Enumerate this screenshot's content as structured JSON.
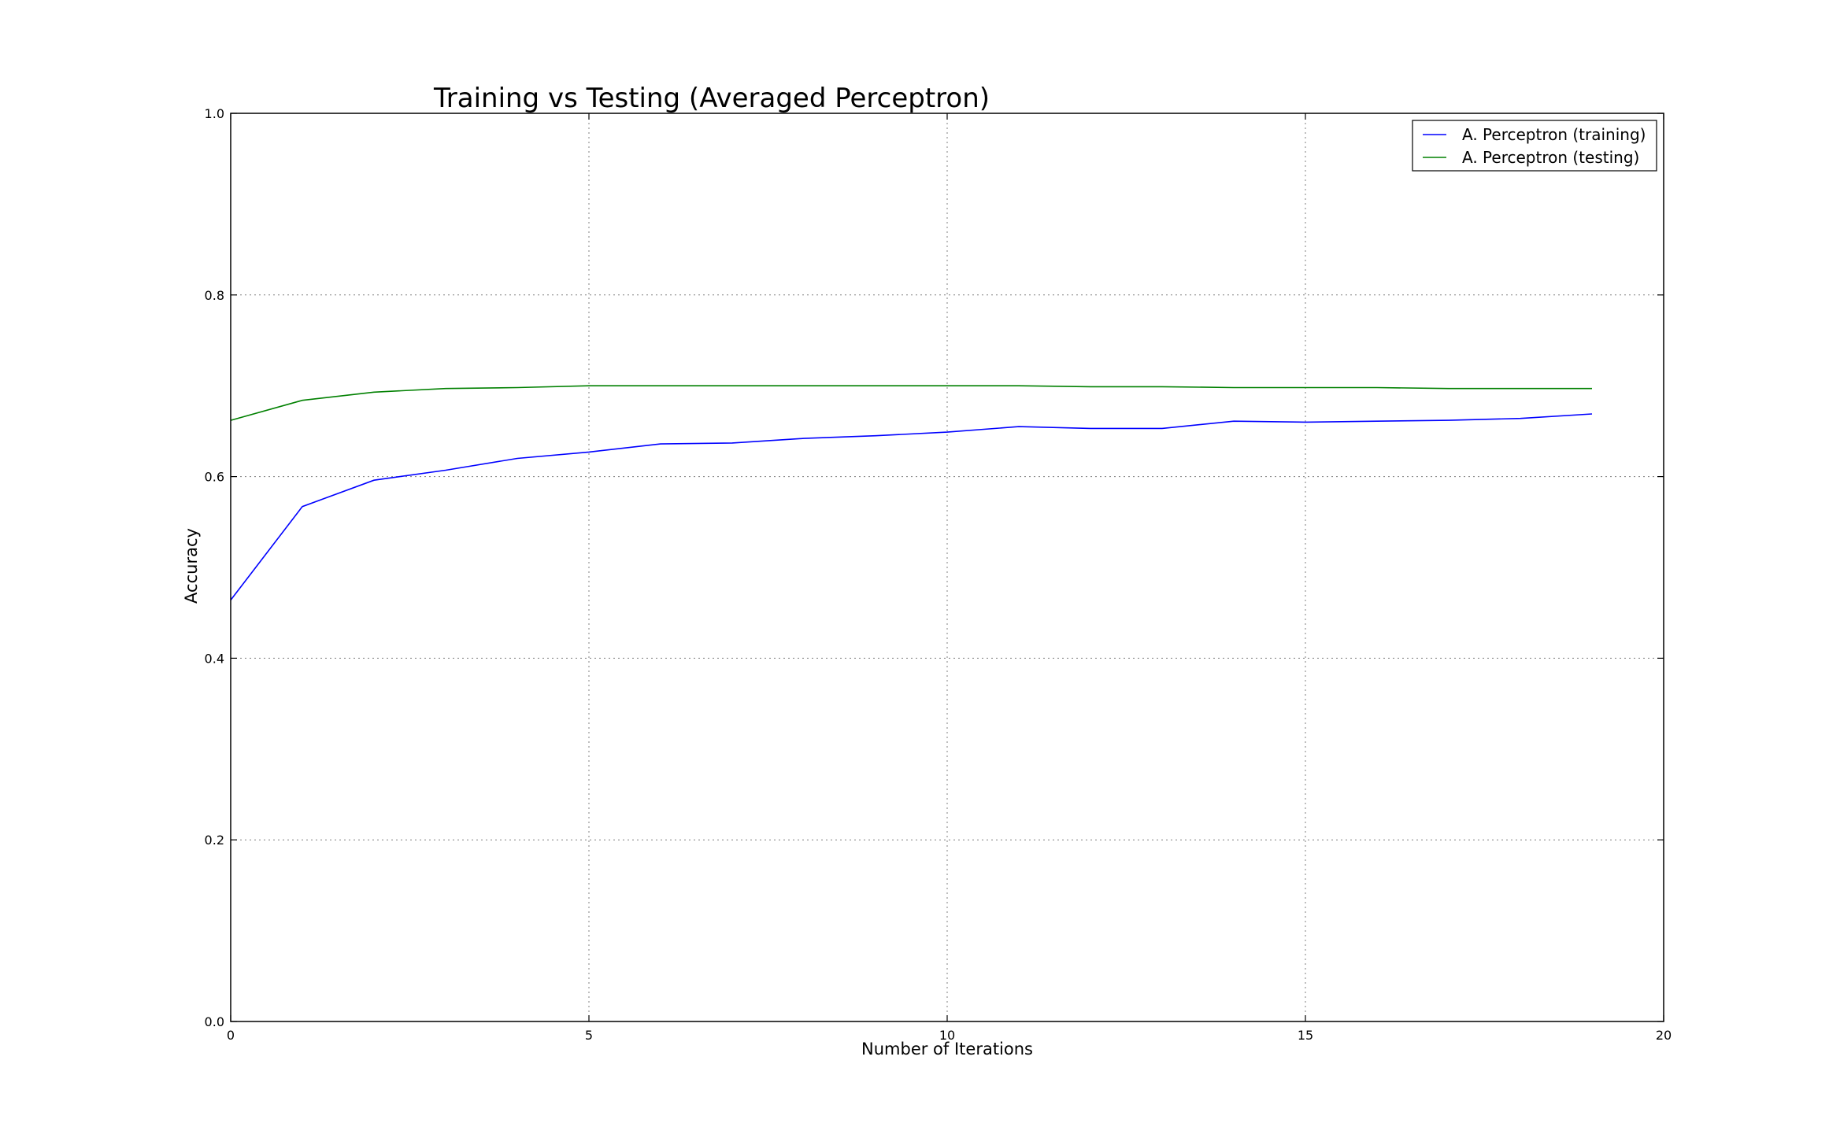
{
  "chart_data": {
    "type": "line",
    "title": "Training vs Testing (Averaged Perceptron)",
    "xlabel": "Number of Iterations",
    "ylabel": "Accuracy",
    "xlim": [
      0,
      20
    ],
    "ylim": [
      0.0,
      1.0
    ],
    "xticks": [
      0,
      5,
      10,
      15,
      20
    ],
    "xtick_labels": [
      "0",
      "5",
      "10",
      "15",
      "20"
    ],
    "yticks": [
      0.0,
      0.2,
      0.4,
      0.6,
      0.8,
      1.0
    ],
    "ytick_labels": [
      "0.0",
      "0.2",
      "0.4",
      "0.6",
      "0.8",
      "1.0"
    ],
    "grid": true,
    "legend_position": "top-right",
    "x": [
      0,
      1,
      2,
      3,
      4,
      5,
      6,
      7,
      8,
      9,
      10,
      11,
      12,
      13,
      14,
      15,
      16,
      17,
      18,
      19
    ],
    "series": [
      {
        "name": "A. Perceptron (training)",
        "color": "#0000ff",
        "values": [
          0.464,
          0.567,
          0.596,
          0.607,
          0.62,
          0.627,
          0.636,
          0.637,
          0.642,
          0.645,
          0.649,
          0.655,
          0.653,
          0.653,
          0.661,
          0.66,
          0.661,
          0.662,
          0.664,
          0.669
        ]
      },
      {
        "name": "A. Perceptron (testing)",
        "color": "#008000",
        "values": [
          0.662,
          0.684,
          0.693,
          0.697,
          0.698,
          0.7,
          0.7,
          0.7,
          0.7,
          0.7,
          0.7,
          0.7,
          0.699,
          0.699,
          0.698,
          0.698,
          0.698,
          0.697,
          0.697,
          0.697
        ]
      }
    ]
  }
}
